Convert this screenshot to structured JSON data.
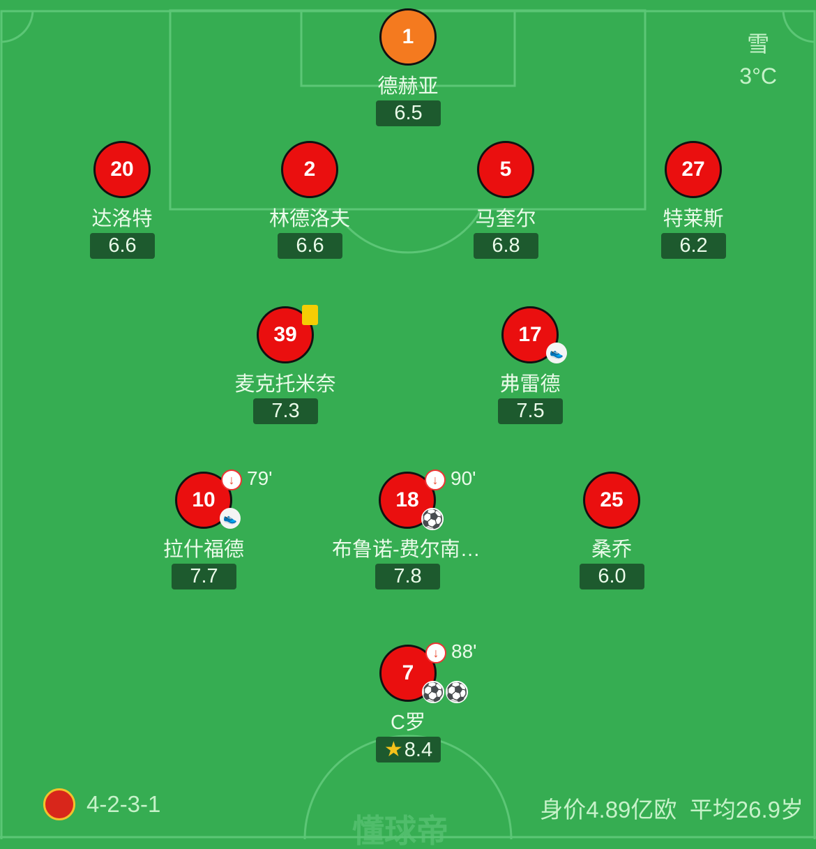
{
  "weather": {
    "condition": "雪",
    "temperature": "3°C"
  },
  "team": {
    "formation": "4-2-3-1",
    "value": "身价4.89亿欧",
    "avg_age": "平均26.9岁",
    "crest_icon": "manchester-united-crest"
  },
  "watermark": "懂球帝",
  "colors": {
    "pitch": "#36ad52",
    "kit": "#ea0f0f",
    "gk_kit": "#f47a1f",
    "rating_bg": "#1d5a2e"
  },
  "players": [
    {
      "number": "1",
      "name": "德赫亚",
      "rating": "6.5",
      "gk": true
    },
    {
      "number": "20",
      "name": "达洛特",
      "rating": "6.6"
    },
    {
      "number": "2",
      "name": "林德洛夫",
      "rating": "6.6"
    },
    {
      "number": "5",
      "name": "马奎尔",
      "rating": "6.8"
    },
    {
      "number": "27",
      "name": "特莱斯",
      "rating": "6.2"
    },
    {
      "number": "39",
      "name": "麦克托米奈",
      "rating": "7.3",
      "yellow_card": true
    },
    {
      "number": "17",
      "name": "弗雷德",
      "rating": "7.5",
      "assist": true
    },
    {
      "number": "10",
      "name": "拉什福德",
      "rating": "7.7",
      "sub_off": "79'",
      "assist": true
    },
    {
      "number": "18",
      "name": "布鲁诺-费尔南德斯",
      "rating": "7.8",
      "sub_off": "90'",
      "goals": 1
    },
    {
      "number": "25",
      "name": "桑乔",
      "rating": "6.0"
    },
    {
      "number": "7",
      "name": "C罗",
      "rating": "8.4",
      "sub_off": "88'",
      "goals": 1,
      "own_goal_icon": true,
      "mvp": true
    }
  ]
}
